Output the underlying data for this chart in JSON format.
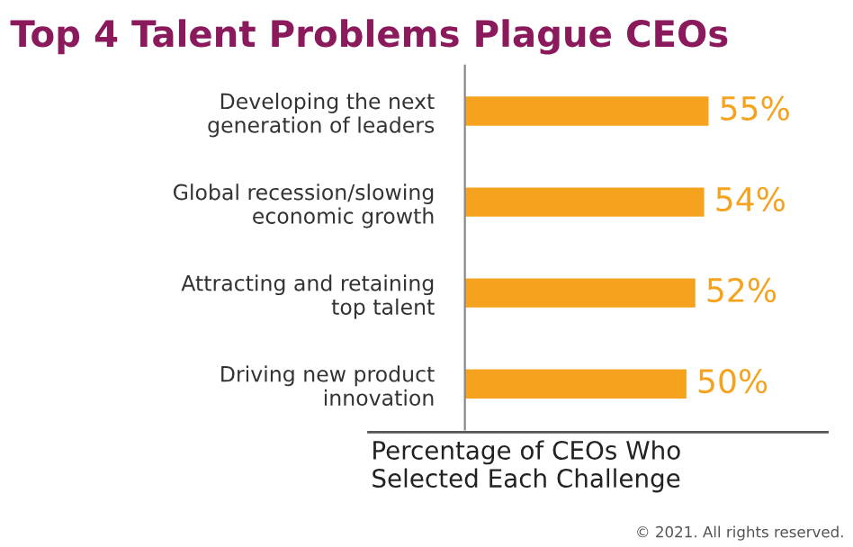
{
  "chart_data": {
    "type": "bar",
    "orientation": "horizontal",
    "title": "Top 4 Talent Problems Plague CEOs",
    "categories": [
      "Developing the next\ngeneration of leaders",
      "Global recession/slowing\neconomic growth",
      "Attracting and retaining\ntop talent",
      "Driving new product\ninnovation"
    ],
    "values": [
      55,
      54,
      52,
      50
    ],
    "color": "#f5a31f",
    "value_labels": [
      "55%",
      "54%",
      "52%",
      "50%"
    ],
    "xlabel": "Percentage of CEOs Who\nSelected Each Challenge",
    "annotations": [
      "© 2021. All rights reserved."
    ],
    "grid": false,
    "legend": false
  }
}
